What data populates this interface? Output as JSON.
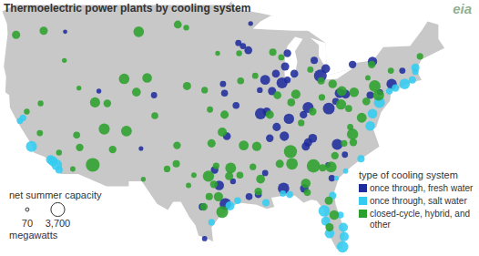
{
  "chart_data": {
    "type": "scatter",
    "title": "Thermoelectric power plants by cooling system",
    "logo_text": "eia",
    "tick_labels": false,
    "xlim": [
      -125,
      -62.5
    ],
    "ylim": [
      24.5,
      49.5
    ],
    "legend": "lower right",
    "legend_title": "type of cooling system",
    "size_legend": {
      "title": "net summer capacity",
      "ticks": [
        70,
        {
          "value": 3700,
          "label": "3,700"
        }
      ],
      "unit": "megawatts"
    },
    "series": [
      {
        "name": "once through, fresh water",
        "color": "#1f2c9c",
        "x": [
          -93.3,
          -92.6,
          -93.9,
          -92.3,
          -87.8,
          -87.5,
          -86.6,
          -83.2,
          -82.5,
          -84.0,
          -87.5,
          -89.5,
          -88.2,
          -90.4,
          -91.1,
          -84.8,
          -82.1,
          -80.7,
          -85.4,
          -87.3,
          -88.9,
          -81.2,
          -79.9,
          -76.7,
          -75.4,
          -76.4,
          -73.9,
          -90.2,
          -91.0,
          -94.2,
          -95.9,
          -95.7,
          -95.4,
          -87.9,
          -84.8,
          -85.1,
          -89.8,
          -84.2,
          -85.3,
          -88.0,
          -81.7,
          -82.2,
          -80.0,
          -81.0,
          -91.3,
          -90.4,
          -92.5,
          -97.0,
          -95.6,
          -96.4,
          -98.6,
          -94.6,
          -98.3,
          -104.9,
          -112.1,
          -106.6,
          -116.5,
          -89.0,
          -79.0,
          -72.5
        ],
        "y": [
          45.0,
          44.6,
          45.3,
          47.2,
          43.0,
          44.3,
          42.3,
          42.1,
          42.8,
          43.6,
          41.7,
          40.6,
          41.4,
          41.7,
          40.7,
          39.0,
          38.9,
          40.4,
          38.3,
          37.9,
          37.1,
          39.6,
          40.3,
          40.2,
          40.5,
          43.5,
          41.3,
          38.6,
          38.4,
          39.2,
          41.3,
          40.4,
          36.2,
          36.2,
          35.6,
          35.2,
          36.0,
          36.0,
          31.1,
          31.1,
          32.1,
          33.4,
          34.4,
          35.4,
          30.5,
          32.6,
          30.3,
          32.9,
          29.6,
          31.4,
          29.3,
          31.8,
          26.2,
          40.2,
          40.6,
          35.0,
          46.4,
          42.3,
          43.2,
          42.6
        ],
        "size": [
          600,
          1100,
          600,
          300,
          1200,
          1000,
          1100,
          3100,
          1400,
          900,
          700,
          1200,
          2300,
          1800,
          500,
          2300,
          2600,
          1700,
          1000,
          2000,
          1200,
          800,
          1400,
          900,
          500,
          1600,
          2000,
          1200,
          2400,
          800,
          600,
          800,
          1100,
          1600,
          1200,
          1200,
          1000,
          1400,
          1300,
          2500,
          700,
          400,
          600,
          2200,
          800,
          600,
          800,
          1000,
          2500,
          1700,
          900,
          500,
          400,
          600,
          300,
          250,
          200,
          1100,
          1000,
          600
        ]
      },
      {
        "name": "once through, salt water",
        "color": "#33ccf0",
        "x": [
          -122.4,
          -122.0,
          -120.9,
          -118.4,
          -118.1,
          -117.6,
          -117.3,
          -97.4,
          -95.0,
          -94.0,
          -90.3,
          -88.1,
          -87.2,
          -82.5,
          -82.7,
          -82.0,
          -80.1,
          -80.3,
          -80.6,
          -81.6,
          -80.2,
          -76.4,
          -76.7,
          -74.2,
          -73.4,
          -72.2,
          -71.2,
          -70.8,
          -70.8,
          -77.9,
          -79.9,
          -81.1,
          -75.5
        ],
        "y": [
          37.7,
          38.0,
          35.2,
          33.9,
          33.75,
          33.4,
          32.9,
          27.8,
          29.4,
          29.9,
          29.7,
          30.6,
          30.5,
          27.9,
          28.9,
          26.7,
          26.4,
          25.4,
          28.5,
          30.4,
          27.3,
          38.4,
          37.2,
          40.6,
          40.9,
          41.3,
          41.7,
          42.5,
          42.9,
          34.0,
          32.8,
          32.1,
          39.5
        ],
        "size": [
          600,
          700,
          2300,
          1500,
          1800,
          2200,
          900,
          700,
          1500,
          800,
          900,
          600,
          800,
          1500,
          2500,
          1700,
          1600,
          2500,
          800,
          1000,
          1500,
          1700,
          1700,
          700,
          1000,
          2100,
          900,
          700,
          1200,
          900,
          400,
          300,
          2300
        ]
      },
      {
        "name": "closed-cycle, hybrid, and other",
        "color": "#2ca02c",
        "x": [
          -122.9,
          -119.3,
          -121.5,
          -119.8,
          -117.3,
          -115.5,
          -114.6,
          -112.9,
          -110.3,
          -111.4,
          -108.5,
          -107.2,
          -104.8,
          -112.6,
          -111.0,
          -105.8,
          -108.8,
          -106.9,
          -116.6,
          -119.7,
          -115.0,
          -114.7,
          -101.8,
          -100.7,
          -106.3,
          -103.2,
          -101.9,
          -102.0,
          -100.4,
          -97.4,
          -96.0,
          -95.7,
          -97.6,
          -98.3,
          -100.6,
          -93.6,
          -91.7,
          -93.8,
          -96.6,
          -97.7,
          -96.0,
          -97.8,
          -95.1,
          -94.9,
          -96.5,
          -98.4,
          -96.8,
          -99.7,
          -97.1,
          -93.7,
          -92.0,
          -91.5,
          -93.2,
          -91.3,
          -91.0,
          -88.5,
          -86.9,
          -87.1,
          -85.1,
          -84.1,
          -82.9,
          -81.8,
          -81.3,
          -80.1,
          -78.9,
          -79.0,
          -79.3,
          -77.8,
          -82.0,
          -81.4,
          -82.1,
          -84.9,
          -87.0,
          -86.4,
          -88.8,
          -89.8,
          -85.7,
          -84.2,
          -83.0,
          -81.6,
          -83.1,
          -84.5,
          -89.4,
          -88.3,
          -80.4,
          -78.8,
          -76.1,
          -75.6,
          -77.2,
          -79.5,
          -80.5,
          -76.5,
          -74.0,
          -70.2,
          -77.0
        ],
        "y": [
          46.1,
          46.5,
          38.6,
          36.5,
          34.6,
          33.0,
          35.1,
          33.4,
          34.9,
          36.9,
          36.7,
          40.5,
          38.2,
          39.5,
          39.4,
          41.9,
          41.8,
          46.4,
          43.6,
          39.4,
          36.3,
          40.9,
          47.1,
          46.8,
          32.0,
          33.0,
          35.3,
          33.5,
          31.4,
          35.5,
          36.6,
          38.3,
          38.8,
          40.7,
          41.1,
          41.6,
          42.1,
          44.3,
          44.3,
          30.3,
          28.8,
          32.3,
          32.3,
          33.1,
          30.3,
          29.3,
          33.3,
          32.4,
          31.5,
          32.4,
          33.2,
          35.2,
          35.3,
          30.8,
          32.0,
          33.5,
          33.5,
          34.7,
          31.6,
          33.3,
          33.1,
          33.2,
          34.3,
          35.5,
          35.6,
          36.4,
          37.1,
          38.0,
          27.3,
          28.5,
          29.9,
          30.7,
          39.5,
          40.3,
          40.2,
          38.3,
          37.5,
          38.6,
          40.0,
          41.3,
          41.6,
          42.7,
          44.4,
          43.9,
          40.6,
          40.5,
          41.1,
          40.2,
          39.6,
          38.9,
          39.3,
          43.2,
          42.6,
          44.0,
          41.9
        ],
        "size": [
          1200,
          1200,
          500,
          600,
          500,
          400,
          1000,
          3700,
          1000,
          2300,
          2200,
          1400,
          800,
          1900,
          1000,
          1700,
          2100,
          2100,
          300,
          500,
          800,
          300,
          1100,
          500,
          300,
          700,
          1000,
          900,
          400,
          1200,
          1500,
          1200,
          600,
          700,
          1200,
          800,
          600,
          500,
          300,
          900,
          2700,
          2400,
          1200,
          2200,
          1600,
          1000,
          700,
          400,
          1000,
          800,
          700,
          1600,
          1800,
          1000,
          1400,
          1200,
          2600,
          3300,
          1700,
          3500,
          900,
          2300,
          1000,
          700,
          1000,
          2400,
          600,
          1800,
          1200,
          1700,
          1200,
          800,
          1100,
          1600,
          1100,
          1200,
          700,
          1000,
          700,
          1300,
          900,
          600,
          900,
          600,
          1800,
          1700,
          2600,
          2300,
          1100,
          800,
          2000,
          1000,
          600,
          700,
          400
        ]
      }
    ]
  }
}
